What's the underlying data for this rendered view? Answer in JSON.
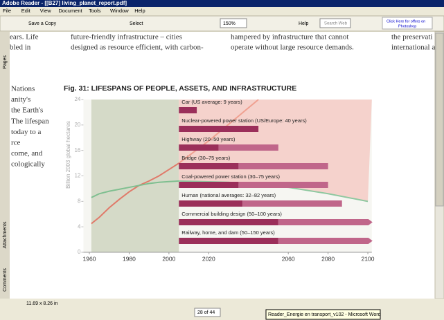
{
  "window": {
    "title": "Adobe Reader - [[B27] living_planet_report.pdf]"
  },
  "menu": [
    "File",
    "Edit",
    "View",
    "Document",
    "Tools",
    "Window",
    "Help"
  ],
  "toolbar": {
    "save": "Save a Copy",
    "select": "Select",
    "zoom": "150%",
    "help": "Help",
    "search": "Search Web",
    "ad": [
      "Click Here for offers on",
      "Photoshop"
    ]
  },
  "side_tabs": [
    "Pages",
    "Attachments",
    "Comments"
  ],
  "document": {
    "columns": [
      [
        "ears. Life",
        "bled in"
      ],
      [
        "future-friendly infrastructure – cities",
        "designed as resource efficient, with carbon-"
      ],
      [
        "hampered by infrastructure that cannot",
        "operate without large resource demands."
      ],
      [
        "the preservati",
        "international a"
      ]
    ],
    "left_text": [
      "Nations",
      "anity's",
      "the Earth's",
      "The lifespan",
      "today to a",
      "rce",
      "come, and",
      "cologically"
    ],
    "figure_title": "Fig. 31: LIFESPANS OF PEOPLE, ASSETS, AND INFRASTRUCTURE"
  },
  "chart_data": {
    "type": "line",
    "y_label": "Billion 2003 global hectares",
    "xlim": [
      1957,
      2102
    ],
    "xticks": [
      1960,
      1980,
      2000,
      2020,
      2060,
      2080,
      2100
    ],
    "ylim": [
      0,
      24
    ],
    "yticks": [
      0,
      4,
      8,
      12,
      16,
      20,
      24
    ],
    "series": [
      {
        "color": "#e07a6a",
        "x": [
          1961,
          1965,
          1970,
          1975,
          1980,
          1985,
          1990,
          1995,
          2000,
          2005
        ],
        "values": [
          4.5,
          5.5,
          7,
          8.3,
          9.5,
          10.5,
          11.2,
          12,
          13,
          14
        ]
      },
      {
        "color": "#f0a090",
        "x": [
          2005,
          2020,
          2045
        ],
        "values": [
          14,
          17.5,
          24
        ]
      },
      {
        "color": "#7fbf90",
        "x": [
          1961,
          1965,
          1970,
          1975,
          1980,
          1985,
          1990,
          1995,
          2000,
          2005
        ],
        "values": [
          8.6,
          9.2,
          9.6,
          9.9,
          10.2,
          10.5,
          10.8,
          11,
          11.1,
          11.2
        ]
      },
      {
        "color": "#8fc8a0",
        "x": [
          2005,
          2030,
          2060,
          2080,
          2100
        ],
        "values": [
          11.2,
          11,
          10.2,
          9.2,
          8
        ]
      }
    ],
    "bar_colors": [
      "#9b2f5a",
      "#c0668a"
    ],
    "ranges": [
      {
        "label": "Car (US average: 9 years)",
        "start": 2005,
        "ends": [
          2014
        ]
      },
      {
        "label": "Nuclear-powered power station (US/Europe: 40 years)",
        "start": 2005,
        "ends": [
          2045
        ]
      },
      {
        "label": "Highway (20–50 years)",
        "start": 2005,
        "ends": [
          2025,
          2055
        ]
      },
      {
        "label": "Bridge (30–75 years)",
        "start": 2005,
        "ends": [
          2035,
          2080
        ]
      },
      {
        "label": "Coal-powered power station (30–75 years)",
        "start": 2005,
        "ends": [
          2035,
          2080
        ]
      },
      {
        "label": "Human (national averages: 32–82 years)",
        "start": 2005,
        "ends": [
          2037,
          2087
        ]
      },
      {
        "label": "Commercial building design (50–100 years)",
        "start": 2005,
        "ends": [
          2055
        ],
        "arrow": true
      },
      {
        "label": "Railway, home, and dam (50–150 years)",
        "start": 2005,
        "ends": [
          2055
        ],
        "arrow": true
      }
    ]
  },
  "status": {
    "page_size": "11.69 x 8.26 in",
    "page_field": "28 of 44",
    "tooltip": "Reader_Energie en transport_v102 - Microsoft Word"
  }
}
